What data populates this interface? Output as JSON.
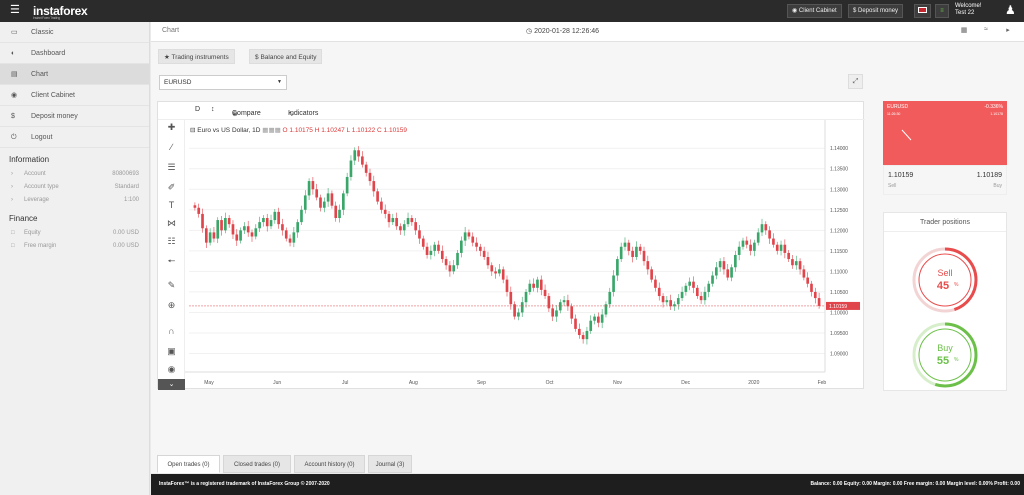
{
  "topbar": {
    "menu_icon": "hamburger-icon",
    "logo": "instaforex",
    "logo_sub": "Instant Forex Trading",
    "client_cabinet": "Client Cabinet",
    "deposit": "Deposit money",
    "welcome": "Welcome!",
    "user": "Test 22"
  },
  "sidebar": {
    "nav": [
      {
        "label": "Classic",
        "icon": "monitor-icon"
      },
      {
        "label": "Dashboard",
        "icon": "dashboard-icon"
      },
      {
        "label": "Chart",
        "icon": "chart-icon"
      },
      {
        "label": "Client Cabinet",
        "icon": "user-circle-icon"
      },
      {
        "label": "Deposit money",
        "icon": "dollar-icon"
      },
      {
        "label": "Logout",
        "icon": "power-icon"
      }
    ],
    "info_title": "Information",
    "info": [
      {
        "label": "Account",
        "value": "80800693"
      },
      {
        "label": "Account type",
        "value": "Standard"
      },
      {
        "label": "Leverage",
        "value": "1:100"
      }
    ],
    "finance_title": "Finance",
    "finance": [
      {
        "label": "Equity",
        "value": "0.00 USD"
      },
      {
        "label": "Free margin",
        "value": "0.00 USD"
      }
    ]
  },
  "header": {
    "title": "Chart",
    "datetime": "2020-01-28 12:26:46"
  },
  "buttons": {
    "trading_instruments": "Trading instruments",
    "balance_equity": "Balance and Equity"
  },
  "symbol_select": "EURUSD",
  "chart_toolbar": {
    "interval": "D",
    "compare": "Compare",
    "indicators": "Indicators"
  },
  "chart_data": {
    "type": "candlestick",
    "title": "Euro vs US Dollar, 1D",
    "ohlc_label": {
      "o": "O 1.10175",
      "h": "H 1.10247",
      "l": "L 1.10122",
      "c": "C 1.10159"
    },
    "x_labels": [
      "May",
      "Jun",
      "Jul",
      "Aug",
      "Sep",
      "Oct",
      "Nov",
      "Dec",
      "2020",
      "Feb"
    ],
    "y_ticks": [
      "1.14000",
      "1.13500",
      "1.13000",
      "1.12500",
      "1.12000",
      "1.11500",
      "1.11000",
      "1.10500",
      "1.10000",
      "1.09500",
      "1.09000",
      "1.08500"
    ],
    "ylim": [
      1.0855,
      1.142
    ],
    "current_price": "1.10159",
    "current_value": 1.10159,
    "closes": [
      1.1255,
      1.124,
      1.1205,
      1.117,
      1.1195,
      1.118,
      1.1225,
      1.12,
      1.123,
      1.1215,
      1.119,
      1.1175,
      1.12,
      1.121,
      1.1195,
      1.1185,
      1.1205,
      1.122,
      1.123,
      1.121,
      1.1225,
      1.1245,
      1.1215,
      1.12,
      1.118,
      1.117,
      1.1195,
      1.122,
      1.125,
      1.1285,
      1.132,
      1.13,
      1.128,
      1.1255,
      1.127,
      1.129,
      1.126,
      1.123,
      1.125,
      1.129,
      1.133,
      1.137,
      1.1395,
      1.138,
      1.136,
      1.134,
      1.132,
      1.1295,
      1.127,
      1.125,
      1.124,
      1.122,
      1.123,
      1.121,
      1.12,
      1.1215,
      1.123,
      1.122,
      1.12,
      1.118,
      1.116,
      1.114,
      1.115,
      1.1165,
      1.115,
      1.113,
      1.1115,
      1.11,
      1.1115,
      1.1145,
      1.1175,
      1.1195,
      1.1185,
      1.117,
      1.116,
      1.115,
      1.1135,
      1.1115,
      1.11,
      1.1095,
      1.1105,
      1.108,
      1.105,
      1.102,
      1.099,
      1.1,
      1.1025,
      1.105,
      1.107,
      1.106,
      1.108,
      1.1055,
      1.104,
      1.101,
      1.099,
      1.1005,
      1.1025,
      1.103,
      1.1015,
      1.0985,
      1.096,
      1.0945,
      1.0935,
      1.0955,
      1.098,
      1.099,
      1.0975,
      1.0995,
      1.102,
      1.105,
      1.109,
      1.113,
      1.116,
      1.117,
      1.115,
      1.1135,
      1.116,
      1.115,
      1.1125,
      1.1105,
      1.108,
      1.106,
      1.104,
      1.1025,
      1.103,
      1.1015,
      1.102,
      1.1035,
      1.105,
      1.1065,
      1.1075,
      1.106,
      1.104,
      1.103,
      1.105,
      1.107,
      1.109,
      1.111,
      1.1125,
      1.1105,
      1.1085,
      1.111,
      1.114,
      1.116,
      1.1175,
      1.1165,
      1.115,
      1.117,
      1.1195,
      1.1215,
      1.12,
      1.118,
      1.1165,
      1.115,
      1.1165,
      1.1145,
      1.113,
      1.1115,
      1.1125,
      1.1105,
      1.1085,
      1.107,
      1.105,
      1.1035,
      1.1016
    ]
  },
  "quote_card": {
    "symbol": "EURUSD",
    "change": "-0.336%",
    "time": "11:26:30",
    "price": "1.10178",
    "bid": "1.10159",
    "ask": "1.10189",
    "sell_label": "Sell",
    "buy_label": "Buy",
    "color": "#f25b5b"
  },
  "trader_positions": {
    "title": "Trader positions",
    "sell_label": "Sell",
    "sell_value": "45",
    "sell_fraction": 0.45,
    "buy_label": "Buy",
    "buy_value": "55",
    "buy_fraction": 0.55,
    "pct": "%",
    "sell_color": "#e84c4c",
    "buy_color": "#6cc04a"
  },
  "bottom_tabs": [
    {
      "label": "Open trades (0)"
    },
    {
      "label": "Closed trades (0)"
    },
    {
      "label": "Account history (0)"
    },
    {
      "label": "Journal (3)"
    }
  ],
  "footer": {
    "left": "InstaForex™ is a registered trademark of InstaForex Group © 2007-2020",
    "right": "Balance: 0.00 Equity: 0.00 Margin: 0.00 Free margin: 0.00 Margin level: 0.00% Profit: 0.00"
  }
}
